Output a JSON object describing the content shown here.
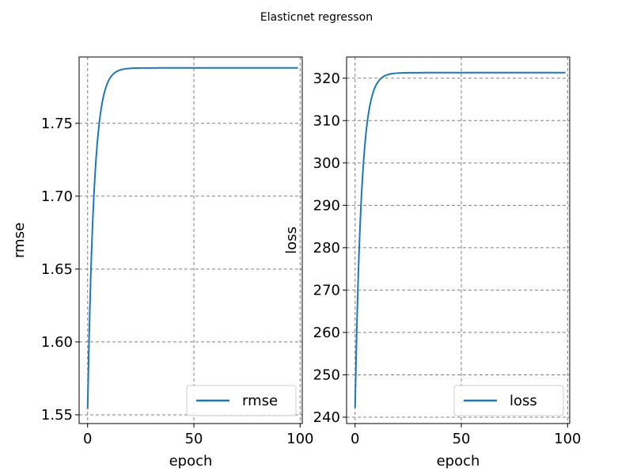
{
  "suptitle": "Elasticnet regresson",
  "chart_data": [
    {
      "type": "line",
      "xlabel": "epoch",
      "ylabel": "rmse",
      "xlim": [
        -4,
        101
      ],
      "ylim": [
        1.544,
        1.7955
      ],
      "xticks": [
        0,
        50,
        100
      ],
      "yticks": [
        1.55,
        1.6,
        1.65,
        1.7,
        1.75
      ],
      "ytick_decimals": 2,
      "grid": true,
      "legend": "lower-right",
      "series": [
        {
          "name": "rmse",
          "color": "#1f77b4",
          "start": 1.554,
          "plateau": 1.788,
          "decay": 3.0,
          "epochs": [
            0,
            99
          ]
        }
      ]
    },
    {
      "type": "line",
      "xlabel": "epoch",
      "ylabel": "loss",
      "xlim": [
        -4,
        101
      ],
      "ylim": [
        238.5,
        325.0
      ],
      "xticks": [
        0,
        50,
        100
      ],
      "yticks": [
        240,
        250,
        260,
        270,
        280,
        290,
        300,
        310,
        320
      ],
      "ytick_decimals": 0,
      "grid": true,
      "legend": "lower-right",
      "series": [
        {
          "name": "loss",
          "color": "#1f77b4",
          "start": 242.2,
          "plateau": 321.3,
          "decay": 3.0,
          "epochs": [
            0,
            99
          ]
        }
      ]
    }
  ]
}
